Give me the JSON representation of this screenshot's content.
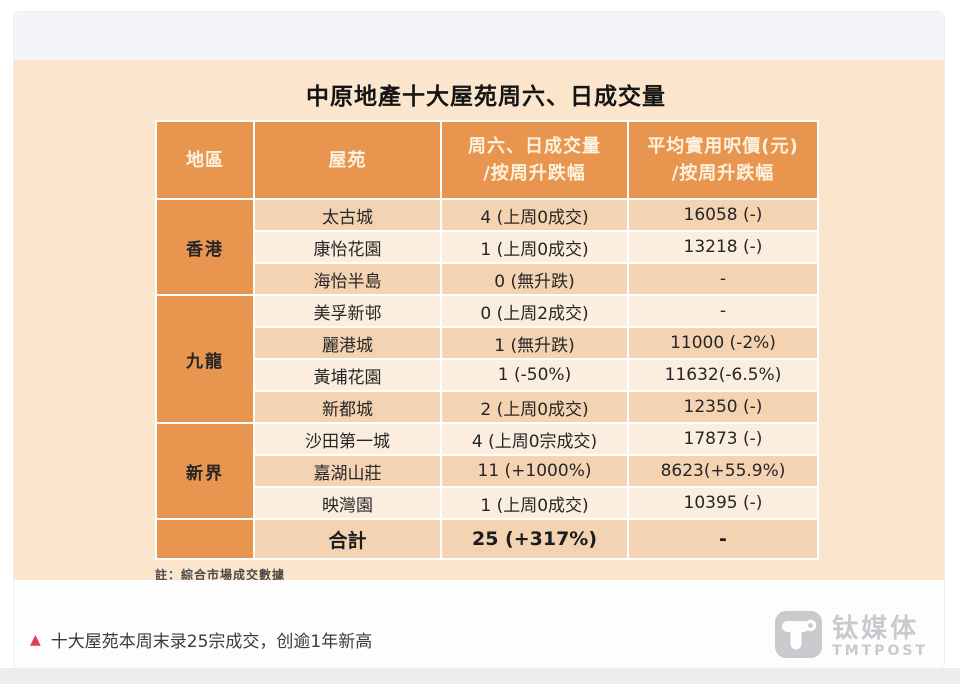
{
  "infographic": {
    "title": "中原地產十大屋苑周六、日成交量",
    "table": {
      "headers": {
        "region": "地區",
        "estate": "屋苑",
        "volume_line1": "周六、日成交量",
        "volume_line2": "/按周升跌幅",
        "price_line1": "平均實用呎價(元)",
        "price_line2": "/按周升跌幅"
      },
      "groups": [
        {
          "region": "香港",
          "rows": [
            {
              "estate": "太古城",
              "volume": "4 (上周0成交)",
              "price": "16058 (-)"
            },
            {
              "estate": "康怡花園",
              "volume": "1 (上周0成交)",
              "price": "13218 (-)"
            },
            {
              "estate": "海怡半島",
              "volume": "0 (無升跌)",
              "price": "-"
            }
          ]
        },
        {
          "region": "九龍",
          "rows": [
            {
              "estate": "美孚新邨",
              "volume": "0 (上周2成交)",
              "price": "-"
            },
            {
              "estate": "麗港城",
              "volume": "1 (無升跌)",
              "price": "11000 (-2%)"
            },
            {
              "estate": "黃埔花園",
              "volume": "1 (-50%)",
              "price": "11632(-6.5%)"
            },
            {
              "estate": "新都城",
              "volume": "2 (上周0成交)",
              "price": "12350 (-)"
            }
          ]
        },
        {
          "region": "新界",
          "rows": [
            {
              "estate": "沙田第一城",
              "volume": "4 (上周0宗成交)",
              "price": "17873 (-)"
            },
            {
              "estate": "嘉湖山莊",
              "volume": "11 (+1000%)",
              "price": "8623(+55.9%)"
            },
            {
              "estate": "映灣園",
              "volume": "1 (上周0成交)",
              "price": "10395 (-)"
            }
          ]
        }
      ],
      "total": {
        "label": "合計",
        "volume": "25 (+317%)",
        "price": "-"
      }
    },
    "note": "註：綜合市場成交數據"
  },
  "footer": {
    "marker": "▲",
    "caption": "十大屋苑本周末录25宗成交，创逾1年新高",
    "logo_cn": "钛媒体",
    "logo_en": "TMTPOST"
  },
  "colors": {
    "accent_orange": "#E8954F",
    "row_tan": "#F4D3B3",
    "row_light": "#FBEEDF",
    "panel_peach": "#FBE5CC",
    "header_text": "#FCF2DE",
    "marker_red": "#E23B57",
    "logo_gray": "#C8CACD",
    "top_strip": "#F2F4F7",
    "bottom_strip": "#ECEDEF"
  },
  "chart_data": {
    "type": "table",
    "title": "中原地產十大屋苑周六、日成交量",
    "columns": [
      "地區",
      "屋苑",
      "周六、日成交量/按周升跌幅",
      "平均實用呎價(元)/按周升跌幅"
    ],
    "rows": [
      [
        "香港",
        "太古城",
        "4 (上周0成交)",
        "16058 (-)"
      ],
      [
        "香港",
        "康怡花園",
        "1 (上周0成交)",
        "13218 (-)"
      ],
      [
        "香港",
        "海怡半島",
        "0 (無升跌)",
        "-"
      ],
      [
        "九龍",
        "美孚新邨",
        "0 (上周2成交)",
        "-"
      ],
      [
        "九龍",
        "麗港城",
        "1 (無升跌)",
        "11000 (-2%)"
      ],
      [
        "九龍",
        "黃埔花園",
        "1 (-50%)",
        "11632(-6.5%)"
      ],
      [
        "九龍",
        "新都城",
        "2 (上周0成交)",
        "12350 (-)"
      ],
      [
        "新界",
        "沙田第一城",
        "4 (上周0宗成交)",
        "17873 (-)"
      ],
      [
        "新界",
        "嘉湖山莊",
        "11 (+1000%)",
        "8623(+55.9%)"
      ],
      [
        "新界",
        "映灣園",
        "1 (上周0成交)",
        "10395 (-)"
      ],
      [
        "",
        "合計",
        "25 (+317%)",
        "-"
      ]
    ],
    "note": "註：綜合市場成交數據",
    "legend_position": "none",
    "grid": "white cell borders on peach background"
  }
}
